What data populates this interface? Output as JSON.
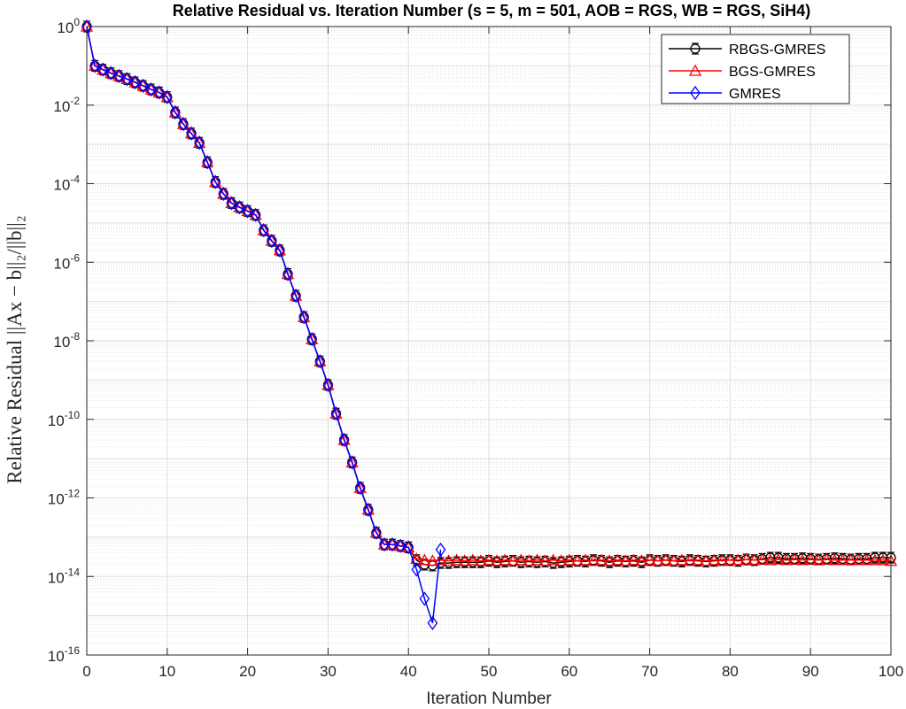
{
  "chart_data": {
    "type": "line",
    "title": "Relative Residual vs. Iteration Number (s = 5, m = 501, AOB = RGS, WB = RGS, SiH4)",
    "xlabel": "Iteration Number",
    "ylabel": "Relative Residual ||Ax − b||₂/||b||₂",
    "xlim": [
      0,
      100
    ],
    "ylim": [
      1e-16,
      1
    ],
    "yscale": "log",
    "grid": true,
    "minor_grid": true,
    "legend_position": "top-right",
    "x_ticks": [
      "0",
      "10",
      "20",
      "30",
      "40",
      "50",
      "60",
      "70",
      "80",
      "90",
      "100"
    ],
    "y_ticks": [
      {
        "base": "10",
        "exp": "0"
      },
      {
        "base": "10",
        "exp": "-2"
      },
      {
        "base": "10",
        "exp": "-4"
      },
      {
        "base": "10",
        "exp": "-6"
      },
      {
        "base": "10",
        "exp": "-8"
      },
      {
        "base": "10",
        "exp": "-10"
      },
      {
        "base": "10",
        "exp": "-12"
      },
      {
        "base": "10",
        "exp": "-14"
      },
      {
        "base": "10",
        "exp": "-16"
      }
    ],
    "series": [
      {
        "name": "RBGS-GMRES",
        "color": "#000000",
        "marker": "circle",
        "error_bars": true,
        "x": [
          0,
          1,
          2,
          3,
          4,
          5,
          6,
          7,
          8,
          9,
          10,
          11,
          12,
          13,
          14,
          15,
          16,
          17,
          18,
          19,
          20,
          21,
          22,
          23,
          24,
          25,
          26,
          27,
          28,
          29,
          30,
          31,
          32,
          33,
          34,
          35,
          36,
          37,
          38,
          39,
          40,
          41,
          42,
          43,
          44,
          45,
          46,
          47,
          48,
          49,
          50,
          51,
          52,
          53,
          54,
          55,
          56,
          57,
          58,
          59,
          60,
          61,
          62,
          63,
          64,
          65,
          66,
          67,
          68,
          69,
          70,
          71,
          72,
          73,
          74,
          75,
          76,
          77,
          78,
          79,
          80,
          81,
          82,
          83,
          84,
          85,
          86,
          87,
          88,
          89,
          90,
          91,
          92,
          93,
          94,
          95,
          96,
          97,
          98,
          99,
          100
        ],
        "values": [
          1.0,
          0.1,
          0.08,
          0.065,
          0.055,
          0.046,
          0.038,
          0.031,
          0.025,
          0.021,
          0.016,
          0.0065,
          0.0033,
          0.0019,
          0.0011,
          0.00035,
          0.00011,
          5.5e-05,
          3.2e-05,
          2.5e-05,
          2e-05,
          1.6e-05,
          6.5e-06,
          3.5e-06,
          2e-06,
          5e-07,
          1.4e-07,
          4e-08,
          1.1e-08,
          3e-09,
          7.5e-10,
          1.4e-10,
          3e-11,
          8e-12,
          1.8e-12,
          5e-13,
          1.3e-13,
          6.5e-14,
          6.5e-14,
          6e-14,
          5.5e-14,
          2.6e-14,
          2e-14,
          1.9e-14,
          2.2e-14,
          2.2e-14,
          2.3e-14,
          2.3e-14,
          2.3e-14,
          2.3e-14,
          2.5e-14,
          2.3e-14,
          2.4e-14,
          2.5e-14,
          2.3e-14,
          2.4e-14,
          2.3e-14,
          2.4e-14,
          2.2e-14,
          2.3e-14,
          2.4e-14,
          2.5e-14,
          2.4e-14,
          2.6e-14,
          2.5e-14,
          2.3e-14,
          2.5e-14,
          2.4e-14,
          2.5e-14,
          2.3e-14,
          2.6e-14,
          2.5e-14,
          2.6e-14,
          2.5e-14,
          2.4e-14,
          2.6e-14,
          2.5e-14,
          2.4e-14,
          2.5e-14,
          2.6e-14,
          2.6e-14,
          2.5e-14,
          2.7e-14,
          2.6e-14,
          2.8e-14,
          3e-14,
          3e-14,
          2.8e-14,
          2.8e-14,
          2.9e-14,
          2.8e-14,
          2.7e-14,
          2.8e-14,
          2.9e-14,
          2.8e-14,
          2.7e-14,
          2.8e-14,
          2.8e-14,
          3e-14,
          3e-14,
          3e-14
        ]
      },
      {
        "name": "BGS-GMRES",
        "color": "#ff0000",
        "marker": "triangle",
        "x": [
          0,
          1,
          2,
          3,
          4,
          5,
          6,
          7,
          8,
          9,
          10,
          11,
          12,
          13,
          14,
          15,
          16,
          17,
          18,
          19,
          20,
          21,
          22,
          23,
          24,
          25,
          26,
          27,
          28,
          29,
          30,
          31,
          32,
          33,
          34,
          35,
          36,
          37,
          38,
          39,
          40,
          41,
          42,
          43,
          44,
          45,
          46,
          47,
          48,
          49,
          50,
          51,
          52,
          53,
          54,
          55,
          56,
          57,
          58,
          59,
          60,
          61,
          62,
          63,
          64,
          65,
          66,
          67,
          68,
          69,
          70,
          71,
          72,
          73,
          74,
          75,
          76,
          77,
          78,
          79,
          80,
          81,
          82,
          83,
          84,
          85,
          86,
          87,
          88,
          89,
          90,
          91,
          92,
          93,
          94,
          95,
          96,
          97,
          98,
          99,
          100
        ],
        "values": [
          1.0,
          0.1,
          0.08,
          0.065,
          0.055,
          0.046,
          0.038,
          0.031,
          0.025,
          0.021,
          0.016,
          0.0065,
          0.0033,
          0.0019,
          0.0011,
          0.00035,
          0.00011,
          5.5e-05,
          3.2e-05,
          2.5e-05,
          2e-05,
          1.6e-05,
          6.5e-06,
          3.5e-06,
          2e-06,
          5e-07,
          1.4e-07,
          4e-08,
          1.1e-08,
          3e-09,
          7.5e-10,
          1.4e-10,
          3e-11,
          8e-12,
          1.8e-12,
          5e-13,
          1.3e-13,
          6.5e-14,
          6.5e-14,
          6e-14,
          5.5e-14,
          2.8e-14,
          2.6e-14,
          2.5e-14,
          2.6e-14,
          2.5e-14,
          2.6e-14,
          2.5e-14,
          2.6e-14,
          2.5e-14,
          2.6e-14,
          2.5e-14,
          2.6e-14,
          2.5e-14,
          2.6e-14,
          2.5e-14,
          2.6e-14,
          2.5e-14,
          2.6e-14,
          2.5e-14,
          2.6e-14,
          2.5e-14,
          2.6e-14,
          2.5e-14,
          2.6e-14,
          2.5e-14,
          2.6e-14,
          2.5e-14,
          2.6e-14,
          2.5e-14,
          2.6e-14,
          2.5e-14,
          2.6e-14,
          2.5e-14,
          2.6e-14,
          2.5e-14,
          2.6e-14,
          2.5e-14,
          2.6e-14,
          2.5e-14,
          2.6e-14,
          2.6e-14,
          2.7e-14,
          2.6e-14,
          2.7e-14,
          2.6e-14,
          2.7e-14,
          2.6e-14,
          2.7e-14,
          2.6e-14,
          2.7e-14,
          2.6e-14,
          2.7e-14,
          2.6e-14,
          2.6e-14,
          2.6e-14,
          2.6e-14,
          2.6e-14,
          2.6e-14,
          2.6e-14,
          2.5e-14
        ]
      },
      {
        "name": "GMRES",
        "color": "#0000ff",
        "marker": "diamond",
        "x": [
          0,
          1,
          2,
          3,
          4,
          5,
          6,
          7,
          8,
          9,
          10,
          11,
          12,
          13,
          14,
          15,
          16,
          17,
          18,
          19,
          20,
          21,
          22,
          23,
          24,
          25,
          26,
          27,
          28,
          29,
          30,
          31,
          32,
          33,
          34,
          35,
          36,
          37,
          38,
          39,
          40,
          41,
          42,
          43,
          44
        ],
        "values": [
          1.0,
          0.1,
          0.08,
          0.065,
          0.055,
          0.046,
          0.038,
          0.031,
          0.025,
          0.021,
          0.016,
          0.0065,
          0.0033,
          0.0019,
          0.0011,
          0.00035,
          0.00011,
          5.5e-05,
          3.2e-05,
          2.5e-05,
          2e-05,
          1.6e-05,
          6.5e-06,
          3.5e-06,
          2e-06,
          5e-07,
          1.4e-07,
          4e-08,
          1.1e-08,
          3e-09,
          7.5e-10,
          1.4e-10,
          3e-11,
          8e-12,
          1.8e-12,
          5e-13,
          1.3e-13,
          6.5e-14,
          6.5e-14,
          6e-14,
          5.5e-14,
          1.5e-14,
          2.7e-15,
          6.5e-16,
          4.8e-14
        ]
      }
    ]
  }
}
